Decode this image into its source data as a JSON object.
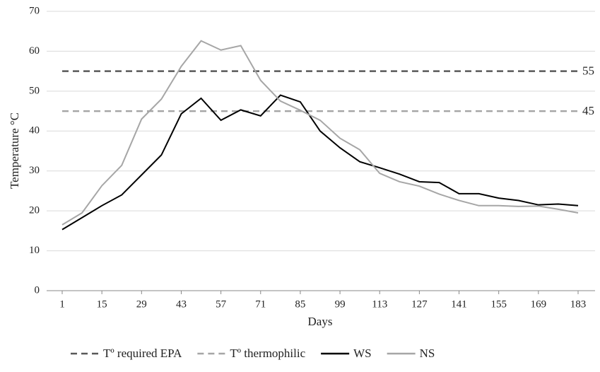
{
  "chart_data": {
    "type": "line",
    "x_label": "Days",
    "y_label": "Temperature °C",
    "categories": [
      "1",
      null,
      "15",
      null,
      "29",
      null,
      "43",
      null,
      "57",
      null,
      "71",
      null,
      "85",
      null,
      "99",
      null,
      "113",
      null,
      "127",
      null,
      "141",
      null,
      "155",
      null,
      "169",
      null,
      "183"
    ],
    "reference_lines": [
      {
        "name": "Tº required EPA",
        "value": 55,
        "color": "#595959"
      },
      {
        "name": "Tº thermophilic",
        "value": 45,
        "color": "#a6a6a6"
      }
    ],
    "series": [
      {
        "name": "WS",
        "color": "#000000",
        "values": [
          15.3,
          18.3,
          21.3,
          24,
          29,
          34,
          44.3,
          48.2,
          42.7,
          45.3,
          43.8,
          49,
          47.3,
          40,
          35.8,
          32.3,
          30.8,
          29.2,
          27.3,
          27.1,
          24.3,
          24.3,
          23.2,
          22.6,
          21.5,
          21.7,
          21.3
        ]
      },
      {
        "name": "NS",
        "color": "#a6a6a6",
        "values": [
          16.5,
          19.5,
          26.3,
          31.4,
          43,
          48,
          56.2,
          62.6,
          60.3,
          61.4,
          52.7,
          47.5,
          45.2,
          42.7,
          38.2,
          35.3,
          29.4,
          27.3,
          26.2,
          24.2,
          22.6,
          21.3,
          21.3,
          21.1,
          21.2,
          20.4,
          19.5
        ]
      }
    ],
    "ylim": [
      0,
      70
    ],
    "yticks": [
      0,
      10,
      20,
      30,
      40,
      50,
      60,
      70
    ],
    "grid": true
  }
}
